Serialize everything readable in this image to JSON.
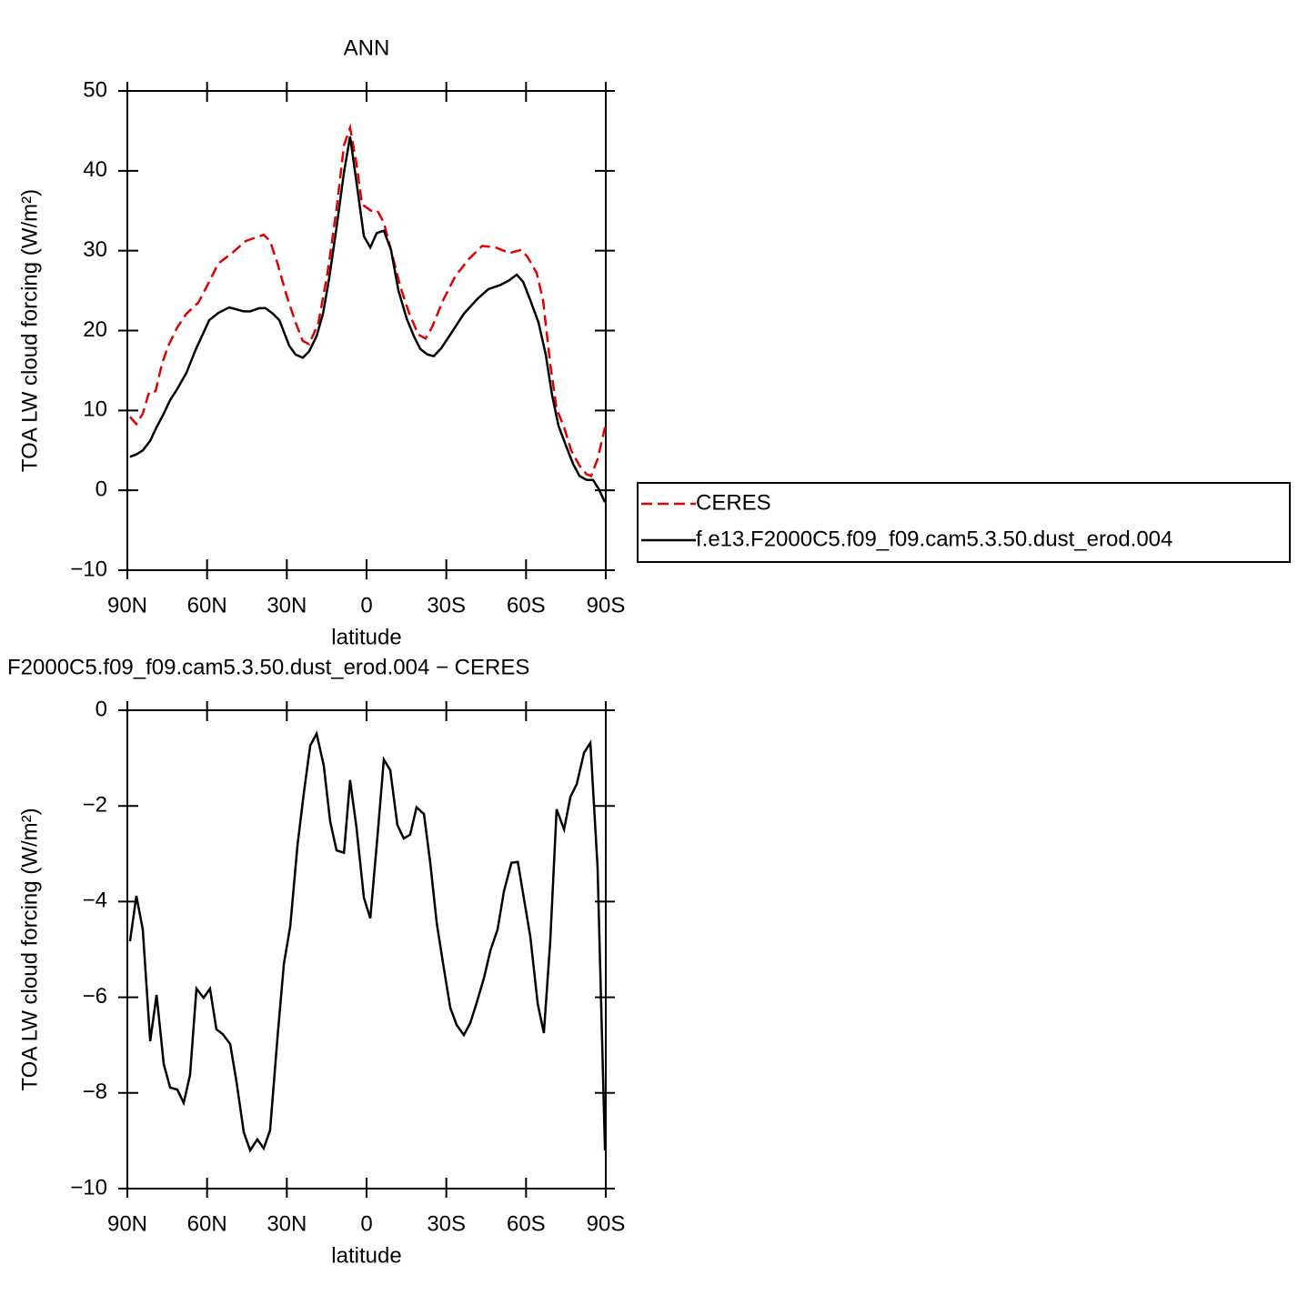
{
  "chart_data": [
    {
      "type": "line",
      "title": "ANN",
      "xlabel": "latitude",
      "ylabel": "TOA LW cloud forcing (W/m²)",
      "xlim": [
        90,
        -90
      ],
      "xticks": [
        {
          "value": 90,
          "label": "90N"
        },
        {
          "value": 60,
          "label": "60N"
        },
        {
          "value": 30,
          "label": "30N"
        },
        0,
        {
          "value": -30,
          "label": "30S"
        },
        {
          "value": -60,
          "label": "60S"
        },
        {
          "value": -90,
          "label": "90S"
        }
      ],
      "ylim": [
        -10,
        50
      ],
      "yticks": [
        {
          "value": -10,
          "label": "−10"
        },
        0,
        10,
        20,
        30,
        40,
        50
      ],
      "series": [
        {
          "name": "CERES",
          "color": "#e00000",
          "style": "dashed",
          "x": [
            89,
            86.6,
            84.2,
            81.8,
            79.4,
            77,
            74.6,
            71.2,
            67.8,
            63.3,
            59.2,
            55.8,
            50.6,
            45.5,
            38.7,
            36.3,
            33.5,
            30.1,
            26.7,
            24,
            21.6,
            18.1,
            14.7,
            11.3,
            8.5,
            6.2,
            3.8,
            1.7,
            -1.7,
            -4.1,
            -6.5,
            -9.2,
            -12.7,
            -16.1,
            -19.5,
            -22.2,
            -24.6,
            -28.8,
            -33.2,
            -38.3,
            -43.5,
            -48.6,
            -53.7,
            -58.2,
            -60.6,
            -64,
            -66.4,
            -69.1,
            -71.5,
            -74.3,
            -77,
            -80.1,
            -82.8,
            -84.5,
            -86.9,
            -89.7
          ],
          "values": [
            9.2,
            8.3,
            9.6,
            12.3,
            12.4,
            15.8,
            18.1,
            20.4,
            22.1,
            23.5,
            26.1,
            28.4,
            29.7,
            31.2,
            32.0,
            31.2,
            28.4,
            24.4,
            21.0,
            18.7,
            18.3,
            21.0,
            27.2,
            35.2,
            43.2,
            45.4,
            40.9,
            35.8,
            35.0,
            35.0,
            33.5,
            30.1,
            25.5,
            22.1,
            19.5,
            19.0,
            20.4,
            23.8,
            26.7,
            28.9,
            30.6,
            30.4,
            29.7,
            30.1,
            29.2,
            27.2,
            23.8,
            15.8,
            10.2,
            7.9,
            5.0,
            3.1,
            2.0,
            1.8,
            3.9,
            7.9
          ]
        },
        {
          "name": "f.e13.F2000C5.f09_f09.cam5.3.50.dust_erod.004",
          "color": "#000000",
          "style": "solid",
          "x": [
            89,
            86.6,
            84.2,
            81.4,
            79,
            76.3,
            73.9,
            71.2,
            67.8,
            64.3,
            59.2,
            55.8,
            51.7,
            46.2,
            43.8,
            40.4,
            38,
            35.2,
            32.8,
            29.1,
            26.7,
            24,
            21.6,
            18.8,
            16.4,
            14,
            11.3,
            8.5,
            6.2,
            3.8,
            1,
            -1.4,
            -3.8,
            -6.5,
            -9.2,
            -12,
            -15.1,
            -17.8,
            -20.2,
            -22.9,
            -25.3,
            -28.1,
            -31.5,
            -36.6,
            -41.8,
            -45.9,
            -50.3,
            -53.7,
            -56.5,
            -58.9,
            -61.6,
            -64.7,
            -67.4,
            -69.8,
            -72.2,
            -75,
            -77.7,
            -80.1,
            -82.8,
            -85.2,
            -87.3,
            -89.7
          ],
          "values": [
            4.2,
            4.5,
            5.0,
            6.2,
            7.9,
            9.6,
            11.3,
            12.7,
            14.7,
            17.6,
            21.3,
            22.2,
            22.9,
            22.4,
            22.4,
            22.8,
            22.8,
            22.1,
            21.3,
            18.1,
            17.0,
            16.6,
            17.4,
            19.3,
            22.1,
            26.7,
            32.9,
            39.8,
            44.3,
            38.6,
            31.8,
            30.4,
            32.2,
            32.5,
            30.1,
            25.0,
            21.5,
            19.3,
            17.7,
            17.0,
            16.8,
            17.8,
            19.5,
            22.1,
            24.0,
            25.2,
            25.7,
            26.3,
            27.0,
            26.1,
            23.8,
            21.0,
            17.0,
            11.9,
            8.1,
            5.6,
            3.3,
            1.8,
            1.3,
            1.3,
            0.2,
            -1.5
          ]
        }
      ]
    },
    {
      "type": "line",
      "title": "F2000C5.f09_f09.cam5.3.50.dust_erod.004 − CERES",
      "xlabel": "latitude",
      "ylabel": "TOA LW cloud forcing (W/m²)",
      "xlim": [
        90,
        -90
      ],
      "xticks": [
        {
          "value": 90,
          "label": "90N"
        },
        {
          "value": 60,
          "label": "60N"
        },
        {
          "value": 30,
          "label": "30N"
        },
        0,
        {
          "value": -30,
          "label": "30S"
        },
        {
          "value": -60,
          "label": "60S"
        },
        {
          "value": -90,
          "label": "90S"
        }
      ],
      "ylim": [
        -10,
        0
      ],
      "yticks": [
        {
          "value": -10,
          "label": "−10"
        },
        {
          "value": -8,
          "label": "−8"
        },
        {
          "value": -6,
          "label": "−6"
        },
        {
          "value": -4,
          "label": "−4"
        },
        {
          "value": -2,
          "label": "−2"
        },
        0
      ],
      "series": [
        {
          "color": "#000000",
          "style": "solid",
          "x": [
            89,
            86.6,
            84.2,
            81.4,
            79,
            76.3,
            73.9,
            71.2,
            68.8,
            66.4,
            64,
            61.3,
            58.9,
            56.5,
            54.1,
            51.3,
            48.9,
            46.2,
            43.8,
            41.1,
            38.7,
            36.3,
            33.5,
            31.1,
            28.7,
            26,
            23.6,
            21.2,
            18.8,
            16.1,
            13.7,
            11.3,
            8.5,
            6.2,
            3.8,
            1,
            -1.4,
            -4.1,
            -6.5,
            -8.9,
            -11.6,
            -14,
            -16.4,
            -18.8,
            -21.6,
            -24,
            -26.4,
            -28.8,
            -31.5,
            -33.9,
            -36.6,
            -39,
            -41.4,
            -44.2,
            -46.6,
            -49.3,
            -51.7,
            -54.5,
            -56.9,
            -59.3,
            -61.6,
            -64.4,
            -66.7,
            -69.1,
            -71.5,
            -74.3,
            -76.7,
            -79.1,
            -81.8,
            -84.2,
            -86.9,
            -89.7
          ],
          "values": [
            -4.83,
            -3.88,
            -4.58,
            -6.92,
            -5.95,
            -7.4,
            -7.89,
            -7.93,
            -8.21,
            -7.62,
            -5.82,
            -6.01,
            -5.82,
            -6.67,
            -6.77,
            -6.98,
            -7.78,
            -8.82,
            -9.2,
            -8.97,
            -9.16,
            -8.78,
            -6.83,
            -5.3,
            -4.51,
            -2.83,
            -1.73,
            -0.74,
            -0.49,
            -1.16,
            -2.32,
            -2.93,
            -2.98,
            -1.46,
            -2.45,
            -3.92,
            -4.35,
            -2.64,
            -1.03,
            -1.25,
            -2.4,
            -2.68,
            -2.6,
            -2.03,
            -2.17,
            -3.21,
            -4.45,
            -5.3,
            -6.22,
            -6.58,
            -6.79,
            -6.54,
            -6.12,
            -5.59,
            -5.02,
            -4.58,
            -3.78,
            -3.19,
            -3.17,
            -3.97,
            -4.73,
            -6.14,
            -6.75,
            -4.83,
            -2.07,
            -2.49,
            -1.81,
            -1.54,
            -0.89,
            -0.68,
            -3.27,
            -9.2
          ]
        }
      ]
    }
  ]
}
